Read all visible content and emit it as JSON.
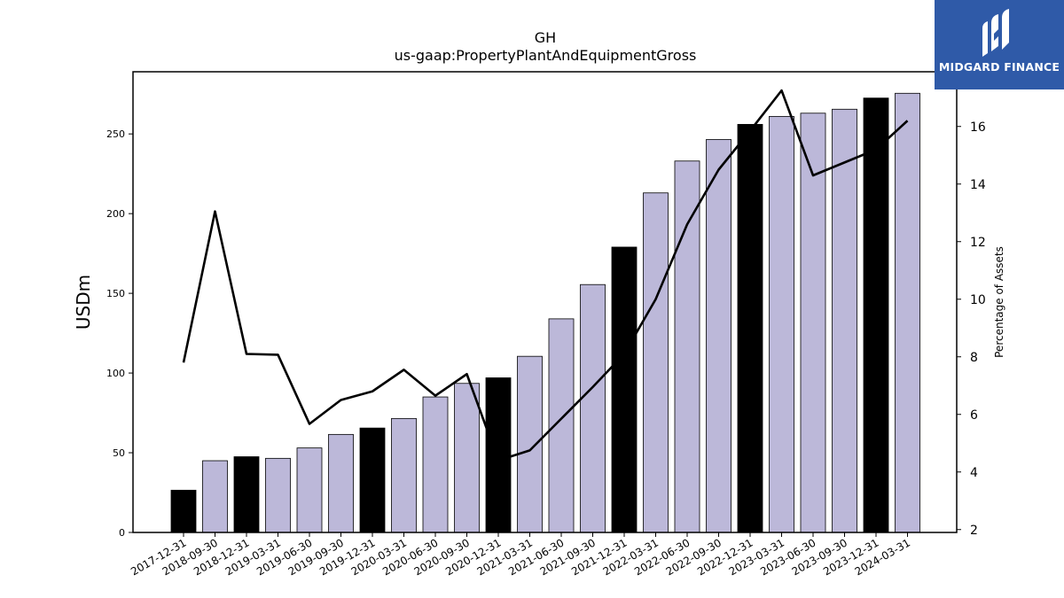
{
  "brand": {
    "name": "MIDGARD FINANCE",
    "color": "#2f5aa8"
  },
  "chart_data": {
    "type": "bar",
    "title": "GH",
    "subtitle": "us-gaap:PropertyPlantAndEquipmentGross",
    "ylabel": "USDm",
    "ylabel_right": "Percentage of Assets",
    "ylim": [
      0,
      289
    ],
    "ylim_right": [
      1.9,
      17.9
    ],
    "yticks": [
      0,
      50,
      100,
      150,
      200,
      250
    ],
    "yticks_right": [
      2,
      4,
      6,
      8,
      10,
      12,
      14,
      16
    ],
    "grid": false,
    "categories": [
      "2017-12-31",
      "2018-09-30",
      "2018-12-31",
      "2019-03-31",
      "2019-06-30",
      "2019-09-30",
      "2019-12-31",
      "2020-03-31",
      "2020-06-30",
      "2020-09-30",
      "2020-12-31",
      "2021-03-31",
      "2021-06-30",
      "2021-09-30",
      "2021-12-31",
      "2022-03-31",
      "2022-06-30",
      "2022-09-30",
      "2022-12-31",
      "2023-03-31",
      "2023-06-30",
      "2023-09-30",
      "2023-12-31",
      "2024-03-31"
    ],
    "series": [
      {
        "kind": "bar",
        "axis": "left",
        "values": [
          26.5,
          45,
          47.5,
          46.5,
          53,
          61.5,
          65.5,
          71.5,
          85,
          93.5,
          97,
          110.5,
          134,
          155.5,
          179,
          213,
          233,
          246.5,
          256,
          261,
          263,
          265.5,
          272.5,
          275.5
        ],
        "colors": [
          "#000000",
          "#bcb8d9",
          "#000000",
          "#bcb8d9",
          "#bcb8d9",
          "#bcb8d9",
          "#000000",
          "#bcb8d9",
          "#bcb8d9",
          "#bcb8d9",
          "#000000",
          "#bcb8d9",
          "#bcb8d9",
          "#bcb8d9",
          "#000000",
          "#bcb8d9",
          "#bcb8d9",
          "#bcb8d9",
          "#000000",
          "#bcb8d9",
          "#bcb8d9",
          "#bcb8d9",
          "#000000",
          "#bcb8d9"
        ]
      },
      {
        "kind": "line",
        "axis": "right",
        "color": "#000000",
        "values": [
          7.8,
          13.05,
          8.1,
          8.07,
          5.67,
          6.5,
          6.8,
          7.55,
          6.65,
          7.4,
          4.4,
          4.75,
          5.85,
          6.95,
          8.1,
          10.0,
          12.6,
          14.5,
          15.85,
          17.25,
          14.3,
          14.75,
          15.2,
          16.2
        ]
      }
    ]
  }
}
